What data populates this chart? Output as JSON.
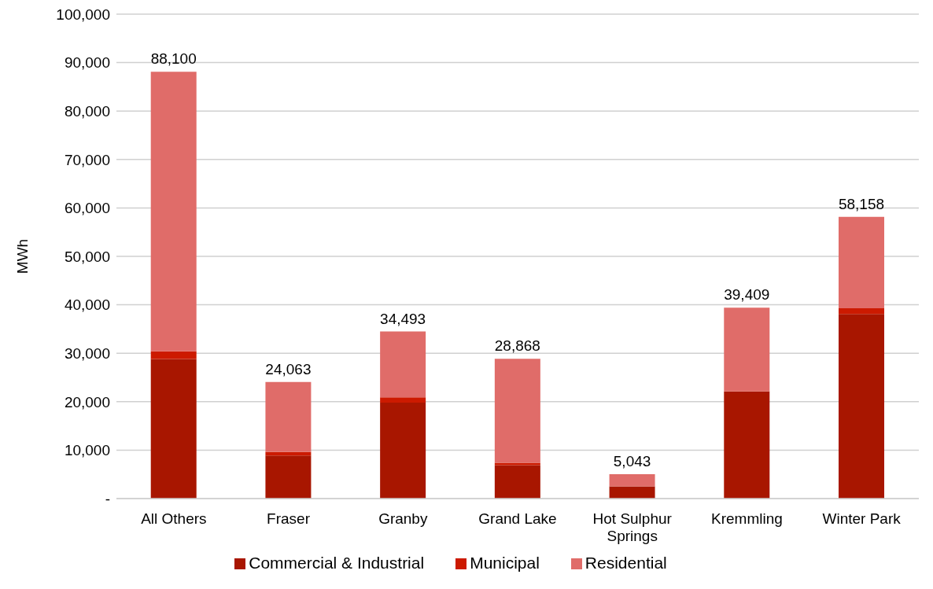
{
  "chart_data": {
    "type": "bar",
    "stacked": true,
    "ylabel": "MWh",
    "categories": [
      "All Others",
      "Fraser",
      "Granby",
      "Grand Lake",
      "Hot Sulphur Springs",
      "Kremmling",
      "Winter Park"
    ],
    "series": [
      {
        "name": "Commercial & Industrial",
        "color": "#a81600",
        "values": [
          28800,
          8900,
          19800,
          6900,
          2500,
          22100,
          38100
        ]
      },
      {
        "name": "Municipal",
        "color": "#cc1a00",
        "values": [
          1600,
          700,
          1100,
          500,
          0,
          0,
          1200
        ]
      },
      {
        "name": "Residential",
        "color": "#e06c69",
        "values": [
          57700,
          14463,
          13593,
          21468,
          2543,
          17309,
          18858
        ]
      }
    ],
    "totals": [
      "88,100",
      "24,063",
      "34,493",
      "28,868",
      "5,043",
      "39,409",
      "58,158"
    ],
    "ylim": [
      0,
      100000
    ],
    "yticks": [
      {
        "value": 0,
        "label": "-"
      },
      {
        "value": 10000,
        "label": "10,000"
      },
      {
        "value": 20000,
        "label": "20,000"
      },
      {
        "value": 30000,
        "label": "30,000"
      },
      {
        "value": 40000,
        "label": "40,000"
      },
      {
        "value": 50000,
        "label": "50,000"
      },
      {
        "value": 60000,
        "label": "60,000"
      },
      {
        "value": 70000,
        "label": "70,000"
      },
      {
        "value": 80000,
        "label": "80,000"
      },
      {
        "value": 90000,
        "label": "90,000"
      },
      {
        "value": 100000,
        "label": "100,000"
      }
    ],
    "grid": "y",
    "legend": "bottom"
  }
}
